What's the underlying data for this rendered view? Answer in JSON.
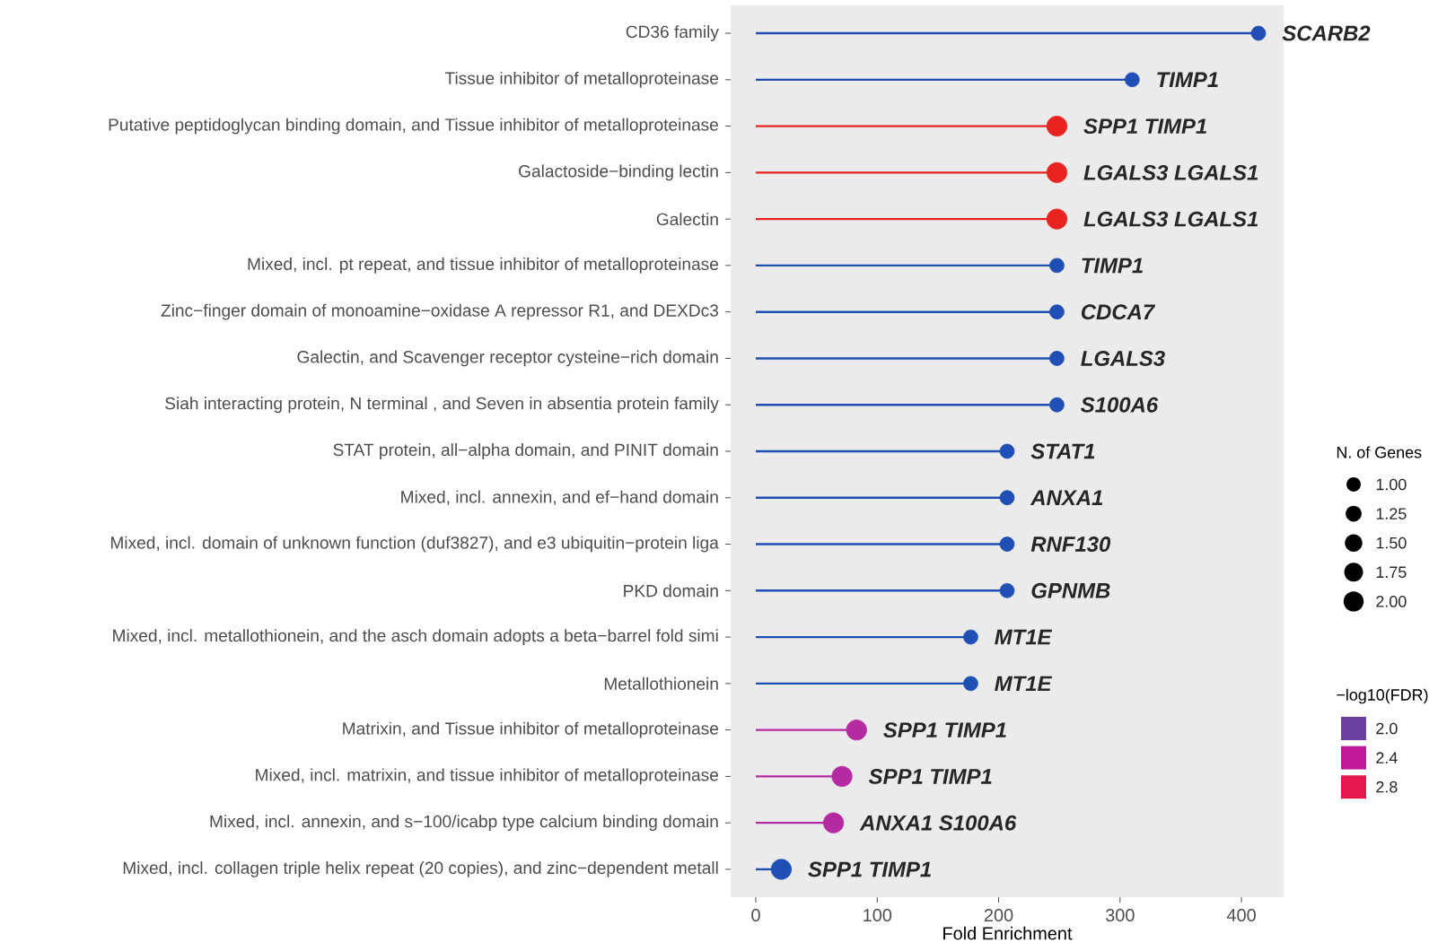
{
  "chart_data": {
    "type": "lollipop",
    "orientation": "horizontal",
    "xlabel": "Fold Enrichment",
    "legend_title": "N. of Genes",
    "clabel": "−log10(FDR)",
    "categories": [
      "CD36 family",
      "Tissue inhibitor of metalloproteinase",
      "Putative peptidoglycan binding domain, and Tissue inhibitor of metalloproteinase",
      "Galactoside−binding lectin",
      "Galectin",
      "Mixed, incl. pt repeat, and tissue inhibitor of metalloproteinase",
      "Zinc−finger domain of monoamine−oxidase A repressor R1, and DEXDc3",
      "Galectin, and Scavenger receptor cysteine−rich domain",
      "Siah interacting protein, N terminal , and Seven in absentia protein family",
      "STAT protein, all−alpha domain, and PINIT domain",
      "Mixed, incl. annexin, and ef−hand domain",
      "Mixed, incl. domain of unknown function (duf3827), and e3 ubiquitin−protein liga",
      "PKD domain",
      "Mixed, incl. metallothionein, and the asch domain adopts a beta−barrel fold simi",
      "Metallothionein",
      "Matrixin, and Tissue inhibitor of metalloproteinase",
      "Mixed, incl. matrixin, and tissue inhibitor of metalloproteinase",
      "Mixed, incl. annexin, and s−100/icabp type calcium binding domain",
      "Mixed, incl. collagen triple helix repeat (20 copies), and zinc−dependent metall"
    ],
    "values": [
      414,
      310,
      248,
      248,
      248,
      248,
      248,
      248,
      248,
      207,
      207,
      207,
      207,
      177,
      177,
      83,
      71,
      64,
      21
    ],
    "value_labels": [
      "SCARB2",
      "TIMP1",
      "SPP1 TIMP1",
      "LGALS3 LGALS1",
      "LGALS3 LGALS1",
      "TIMP1",
      "CDCA7",
      "LGALS3",
      "S100A6",
      "STAT1",
      "ANXA1",
      "RNF130",
      "GPNMB",
      "MT1E",
      "MT1E",
      "SPP1 TIMP1",
      "SPP1 TIMP1",
      "ANXA1 S100A6",
      "SPP1 TIMP1"
    ],
    "colors": [
      "#1f4eb4",
      "#1f4eb4",
      "#e8231f",
      "#e8231f",
      "#e8231f",
      "#1f4eb4",
      "#1f4eb4",
      "#1f4eb4",
      "#1f4eb4",
      "#1f4eb4",
      "#1f4eb4",
      "#1f4eb4",
      "#1f4eb4",
      "#1f4eb4",
      "#1f4eb4",
      "#b42aa0",
      "#b42aa0",
      "#b42aa0",
      "#1f4eb4"
    ],
    "sizes": [
      1,
      1,
      2,
      2,
      2,
      1,
      1,
      1,
      1,
      1,
      1,
      1,
      1,
      1,
      1,
      2,
      2,
      2,
      2
    ],
    "size_legend": [
      {
        "value": 1.0,
        "label": "1.00"
      },
      {
        "value": 1.25,
        "label": "1.25"
      },
      {
        "value": 1.5,
        "label": "1.50"
      },
      {
        "value": 1.75,
        "label": "1.75"
      },
      {
        "value": 2.0,
        "label": "2.00"
      }
    ],
    "cticks": [
      {
        "value": 2.0,
        "label": "2.0"
      },
      {
        "value": 2.4,
        "label": "2.4"
      },
      {
        "value": 2.8,
        "label": "2.8"
      }
    ],
    "xlim": [
      -20.7,
      434.7
    ],
    "xticks": [
      0,
      100,
      200,
      300,
      400
    ]
  }
}
